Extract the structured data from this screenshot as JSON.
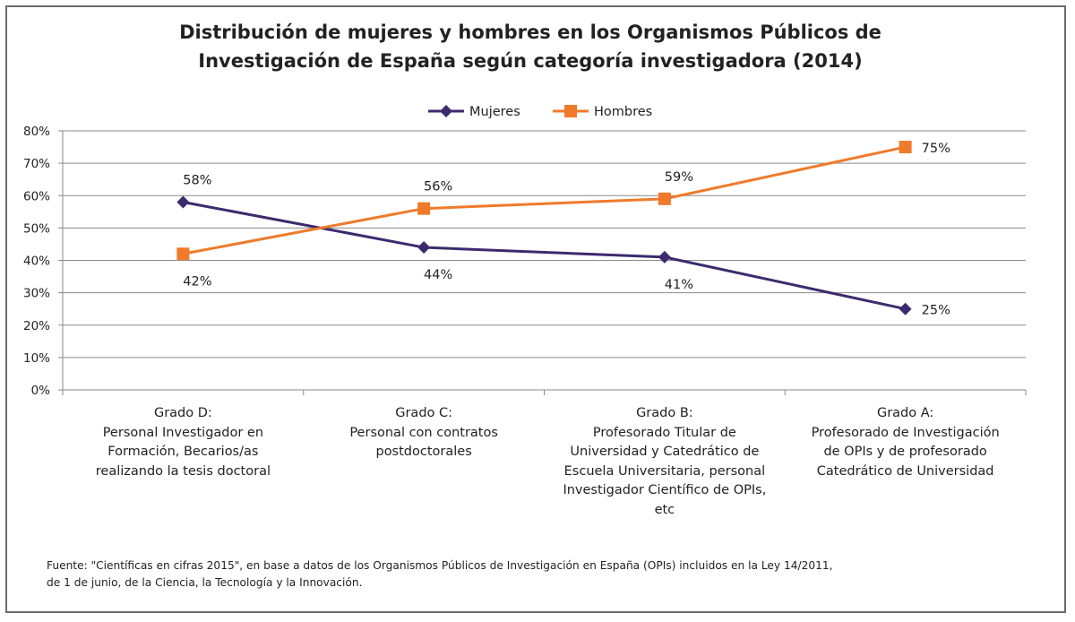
{
  "chart_data": {
    "type": "line",
    "title_lines": [
      "Distribución de mujeres y hombres en los Organismos Públicos de",
      "Investigación de España según categoría investigadora (2014)"
    ],
    "categories": [
      [
        "Grado D:",
        "Personal Investigador en",
        "Formación, Becarios/as",
        "realizando la tesis doctoral"
      ],
      [
        "Grado C:",
        "Personal con contratos",
        "postdoctorales"
      ],
      [
        "Grado B:",
        "Profesorado Titular de",
        "Universidad y Catedrático de",
        "Escuela Universitaria, personal",
        "Investigador Científico de OPIs,",
        "etc"
      ],
      [
        "Grado A:",
        "Profesorado de Investigación",
        "de OPIs y de profesorado",
        "Catedrático de Universidad"
      ]
    ],
    "series": [
      {
        "name": "Mujeres",
        "values": [
          58,
          44,
          41,
          25
        ],
        "labels": [
          "58%",
          "44%",
          "41%",
          "25%"
        ],
        "color": "#3d2a6e",
        "marker": "diamond"
      },
      {
        "name": "Hombres",
        "values": [
          42,
          56,
          59,
          75
        ],
        "labels": [
          "42%",
          "56%",
          "59%",
          "75%"
        ],
        "color": "#f07a2a",
        "marker": "square"
      }
    ],
    "ylim": [
      0,
      80
    ],
    "yticks": [
      "0%",
      "10%",
      "20%",
      "30%",
      "40%",
      "50%",
      "60%",
      "70%",
      "80%"
    ],
    "grid": true,
    "legend_position": "top-center",
    "xlabel": "",
    "ylabel": ""
  },
  "footer_lines": [
    "Fuente: \"Científicas en cifras 2015\", en base a datos de los Organismos Públicos de Investigación en España (OPIs) incluidos en la Ley 14/2011,",
    "de 1 de junio, de la Ciencia, la Tecnología y la Innovación."
  ]
}
